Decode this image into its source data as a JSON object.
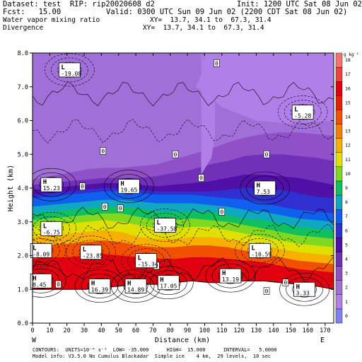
{
  "header": {
    "dataset": "Dataset: test  RIP: rip20020608 d2",
    "init": "Init: 1200 UTC Sat 08 Jun 02",
    "fcst": "Fcst:   15.00",
    "valid": "Valid: 0300 UTC Sun 09 Jun 02 (2200 CDT Sat 08 Jun 02)",
    "field1": "Water vapor mixing ratio",
    "xy1": "XY=  13.7, 34.1 to  67.3, 31.4",
    "field2": "Divergence",
    "xy2": "XY=  13.7, 34.1 to  67.3, 31.4"
  },
  "footer": {
    "line1": "CONTOURS:  UNITS=10⁻⁶ s⁻¹  LOW= -35.000      HIGH=  15.000      INTERVAL=   5.0000",
    "line2": "Model info: V3.5.0 No Cumulus Blackadar  Simple ice    4 km,  29 levels,  10 sec"
  },
  "chart_data": {
    "type": "heatmap",
    "title": "Water vapor mixing ratio / Divergence",
    "xlabel": "Distance (km)",
    "ylabel": "Height (km)",
    "xlim": [
      0,
      175
    ],
    "ylim": [
      0,
      8
    ],
    "xticks": [
      "0",
      "10",
      "20",
      "30",
      "40",
      "50",
      "60",
      "70",
      "80",
      "90",
      "100",
      "110",
      "120",
      "130",
      "140",
      "150",
      "160",
      "170"
    ],
    "yticks": [
      "0.0",
      "1.0",
      "2.0",
      "3.0",
      "4.0",
      "5.0",
      "6.0",
      "7.0",
      "8.0"
    ],
    "endpoints": {
      "left": "W",
      "right": "E"
    },
    "colorbar": {
      "units": "g kg⁻¹",
      "levels": [
        0,
        1,
        2,
        3,
        4,
        5,
        6,
        7,
        8,
        9,
        10,
        11,
        12,
        13,
        14,
        15,
        16,
        17,
        18
      ],
      "colors": [
        "#8080f8",
        "#b080e8",
        "#a070d8",
        "#9050c8",
        "#7030b8",
        "#5010a8",
        "#3030d0",
        "#1060f0",
        "#10a8c0",
        "#10c060",
        "#80d820",
        "#e0e000",
        "#f8b000",
        "#f88000",
        "#f05000",
        "#e82000",
        "#e00010",
        "#f04040",
        "#f87070"
      ]
    },
    "bands": [
      {
        "top": [
          1.0,
          1.0,
          1.0,
          1.0,
          1.05,
          1.1,
          1.15,
          1.15,
          1.2,
          1.25,
          1.2,
          1.2,
          1.25,
          1.25,
          1.2,
          1.15,
          1.1,
          1.0
        ],
        "color": "#888888"
      },
      {
        "top": [
          1.9,
          1.95,
          1.95,
          2.0,
          2.05,
          2.0,
          1.95,
          1.9,
          1.9,
          1.95,
          1.95,
          1.9,
          1.85,
          1.8,
          1.7,
          1.6,
          1.55,
          1.5
        ],
        "color": "#e00010"
      },
      {
        "top": [
          2.25,
          2.3,
          2.35,
          2.4,
          2.45,
          2.4,
          2.3,
          2.25,
          2.25,
          2.3,
          2.3,
          2.25,
          2.15,
          2.05,
          1.95,
          1.85,
          1.8,
          1.75
        ],
        "color": "#f05000"
      },
      {
        "top": [
          2.55,
          2.6,
          2.65,
          2.7,
          2.75,
          2.7,
          2.55,
          2.5,
          2.5,
          2.55,
          2.55,
          2.5,
          2.4,
          2.3,
          2.2,
          2.1,
          2.05,
          2.0
        ],
        "color": "#f8b000"
      },
      {
        "top": [
          2.85,
          2.9,
          2.95,
          3.0,
          3.05,
          3.0,
          2.9,
          2.8,
          2.8,
          2.85,
          2.85,
          2.75,
          2.65,
          2.55,
          2.45,
          2.35,
          2.3,
          2.25
        ],
        "color": "#e0e000"
      },
      {
        "top": [
          3.05,
          3.1,
          3.15,
          3.2,
          3.25,
          3.25,
          3.15,
          3.05,
          3.05,
          3.1,
          3.05,
          3.0,
          2.9,
          2.8,
          2.7,
          2.6,
          2.55,
          2.5
        ],
        "color": "#80d820"
      },
      {
        "top": [
          3.25,
          3.3,
          3.35,
          3.4,
          3.45,
          3.45,
          3.4,
          3.3,
          3.3,
          3.3,
          3.3,
          3.2,
          3.1,
          3.05,
          2.95,
          2.85,
          2.8,
          2.75
        ],
        "color": "#10c060"
      },
      {
        "top": [
          3.45,
          3.5,
          3.55,
          3.6,
          3.65,
          3.65,
          3.6,
          3.55,
          3.55,
          3.55,
          3.5,
          3.45,
          3.35,
          3.3,
          3.2,
          3.1,
          3.05,
          3.0
        ],
        "color": "#10a8c0"
      },
      {
        "top": [
          3.7,
          3.75,
          3.8,
          3.85,
          3.9,
          3.9,
          3.85,
          3.8,
          3.8,
          3.8,
          3.75,
          3.7,
          3.65,
          3.55,
          3.45,
          3.35,
          3.3,
          3.25
        ],
        "color": "#1060f0"
      },
      {
        "top": [
          3.8,
          3.85,
          3.9,
          3.95,
          4.0,
          4.0,
          3.95,
          3.9,
          3.9,
          3.9,
          3.9,
          3.95,
          4.0,
          4.0,
          3.95,
          3.85,
          3.75,
          3.7
        ],
        "color": "#3030d0"
      },
      {
        "top": [
          3.95,
          4.0,
          4.05,
          4.1,
          4.15,
          4.15,
          4.1,
          4.05,
          4.1,
          4.15,
          4.2,
          4.3,
          4.4,
          4.4,
          4.35,
          4.3,
          4.2,
          4.1
        ],
        "color": "#5010a8"
      },
      {
        "top": [
          4.1,
          4.15,
          4.2,
          4.25,
          4.3,
          4.3,
          4.3,
          4.35,
          4.45,
          4.55,
          4.7,
          4.8,
          4.95,
          5.0,
          5.0,
          4.95,
          4.9,
          4.8
        ],
        "color": "#7030b8"
      },
      {
        "top": [
          4.25,
          4.35,
          4.45,
          4.55,
          4.6,
          4.6,
          4.65,
          4.7,
          4.85,
          5.0,
          5.15,
          5.35,
          5.5,
          5.6,
          5.65,
          5.65,
          5.6,
          5.55
        ],
        "color": "#9050c8"
      },
      {
        "top": [
          8,
          8,
          8,
          8,
          8,
          8,
          8,
          8,
          8,
          8,
          8,
          8,
          8,
          8,
          8,
          8,
          8,
          8
        ],
        "color": "#a070d8"
      }
    ],
    "patches": [
      {
        "x": [
          58,
          80,
          95,
          100,
          100,
          95,
          110,
          130,
          150,
          175,
          175,
          100,
          90,
          80,
          70,
          62,
          58
        ],
        "y": [
          8,
          8,
          8,
          8,
          7.6,
          7.0,
          6.4,
          6.0,
          5.9,
          6.0,
          8,
          8,
          8,
          8,
          8,
          8,
          8
        ],
        "color": "#b080e8"
      },
      {
        "x": [
          98,
          104,
          106,
          106,
          104,
          100,
          98
        ],
        "y": [
          4.4,
          4.9,
          5.6,
          6.4,
          7.4,
          7.8,
          8.0
        ],
        "color": "#b080e8"
      }
    ],
    "labels": [
      {
        "kind": "L",
        "value": "-19.08",
        "x": 21.5,
        "y": 7.5
      },
      {
        "kind": "L",
        "value": "-5.28",
        "x": 157,
        "y": 6.25
      },
      {
        "kind": "H",
        "value": "15.23",
        "x": 11,
        "y": 4.1
      },
      {
        "kind": "H",
        "value": "19.65",
        "x": 56,
        "y": 4.05
      },
      {
        "kind": "H",
        "value": "7.53",
        "x": 135,
        "y": 4.0
      },
      {
        "kind": "L",
        "value": "-6.75",
        "x": 11,
        "y": 2.8
      },
      {
        "kind": "L",
        "value": "-37.58",
        "x": 77,
        "y": 2.9
      },
      {
        "kind": "L",
        "value": "-8.09",
        "x": 5,
        "y": 2.15
      },
      {
        "kind": "L",
        "value": "-23.85",
        "x": 34,
        "y": 2.1
      },
      {
        "kind": "L",
        "value": "-15.34",
        "x": 66,
        "y": 1.85
      },
      {
        "kind": "L",
        "value": "-10.59",
        "x": 132,
        "y": 2.15
      },
      {
        "kind": "H",
        "value": "13.19",
        "x": 115,
        "y": 1.4
      },
      {
        "kind": "H",
        "value": "8.45",
        "x": 5,
        "y": 1.25
      },
      {
        "kind": "H",
        "value": "16.39",
        "x": 39,
        "y": 1.1
      },
      {
        "kind": "H",
        "value": "14.89",
        "x": 60,
        "y": 1.1
      },
      {
        "kind": "H",
        "value": "17.05",
        "x": 79,
        "y": 1.2
      },
      {
        "kind": "H",
        "value": "3.33",
        "x": 158,
        "y": 1.0
      }
    ],
    "zeros": [
      {
        "x": 107,
        "y": 7.7
      },
      {
        "x": 41,
        "y": 5.1
      },
      {
        "x": 83,
        "y": 5.0
      },
      {
        "x": 136,
        "y": 5.0
      },
      {
        "x": 42,
        "y": 3.45
      },
      {
        "x": 29,
        "y": 4.05
      },
      {
        "x": 51,
        "y": 3.4
      },
      {
        "x": 98,
        "y": 4.3
      },
      {
        "x": 110,
        "y": 3.3
      },
      {
        "x": 15,
        "y": 1.15
      },
      {
        "x": 72,
        "y": 1.7
      },
      {
        "x": 147,
        "y": 1.2
      },
      {
        "x": 136,
        "y": 0.95
      }
    ]
  }
}
